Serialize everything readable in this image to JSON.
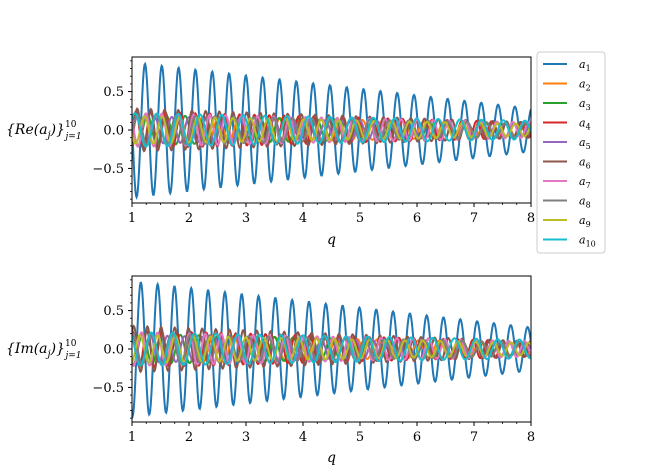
{
  "chart_data": [
    {
      "type": "line",
      "xlabel": "q",
      "ylabel": "{Re(a_j)}_{j=1}^{10}",
      "ylabel_parts": {
        "main": "{Re(a",
        "sub_j": "j",
        "close": ")}",
        "sub_range": "j=1",
        "sup_range": "10"
      },
      "xlim": [
        1,
        8
      ],
      "ylim": [
        -0.95,
        0.95
      ],
      "xticks": [
        "1",
        "2",
        "3",
        "4",
        "5",
        "6",
        "7",
        "8"
      ],
      "yticks": [
        "−0.5",
        "0.0",
        "0.5"
      ],
      "ytick_values": [
        -0.5,
        0.0,
        0.5
      ],
      "grid": false,
      "legend_position": "outside-right",
      "series": [
        {
          "name": "a",
          "sub": "1",
          "color": "#1f77b4",
          "amplitude_start": 0.88,
          "amplitude_end": 0.28,
          "period": 0.295,
          "phase": 0.55
        },
        {
          "name": "a",
          "sub": "2",
          "color": "#ff7f0e",
          "amplitude_start": 0.2,
          "amplitude_end": 0.08,
          "period": 0.36,
          "phase": 1.6
        },
        {
          "name": "a",
          "sub": "3",
          "color": "#2ca02c",
          "amplitude_start": 0.2,
          "amplitude_end": 0.08,
          "period": 0.33,
          "phase": 2.5
        },
        {
          "name": "a",
          "sub": "4",
          "color": "#d62728",
          "amplitude_start": 0.24,
          "amplitude_end": 0.1,
          "period": 0.26,
          "phase": 0.9
        },
        {
          "name": "a",
          "sub": "5",
          "color": "#9467bd",
          "amplitude_start": 0.18,
          "amplitude_end": 0.08,
          "period": 0.3,
          "phase": 3.7
        },
        {
          "name": "a",
          "sub": "6",
          "color": "#8c564b",
          "amplitude_start": 0.28,
          "amplitude_end": 0.1,
          "period": 0.24,
          "phase": 4.4
        },
        {
          "name": "a",
          "sub": "7",
          "color": "#e377c2",
          "amplitude_start": 0.22,
          "amplitude_end": 0.1,
          "period": 0.28,
          "phase": 5.1
        },
        {
          "name": "a",
          "sub": "8",
          "color": "#7f7f7f",
          "amplitude_start": 0.2,
          "amplitude_end": 0.09,
          "period": 0.34,
          "phase": 0.2
        },
        {
          "name": "a",
          "sub": "9",
          "color": "#bcbd22",
          "amplitude_start": 0.18,
          "amplitude_end": 0.08,
          "period": 0.31,
          "phase": 2.0
        },
        {
          "name": "a",
          "sub": "10",
          "color": "#17becf",
          "amplitude_start": 0.22,
          "amplitude_end": 0.12,
          "period": 0.38,
          "phase": 3.0
        }
      ]
    },
    {
      "type": "line",
      "xlabel": "q",
      "ylabel": "{Im(a_j)}_{j=1}^{10}",
      "ylabel_parts": {
        "main": "{Im(a",
        "sub_j": "j",
        "close": ")}",
        "sub_range": "j=1",
        "sup_range": "10"
      },
      "xlim": [
        1,
        8
      ],
      "ylim": [
        -0.95,
        0.95
      ],
      "xticks": [
        "1",
        "2",
        "3",
        "4",
        "5",
        "6",
        "7",
        "8"
      ],
      "yticks": [
        "−0.5",
        "0.0",
        "0.5"
      ],
      "ytick_values": [
        -0.5,
        0.0,
        0.5
      ],
      "grid": false,
      "series": [
        {
          "name": "a",
          "sub": "1",
          "color": "#1f77b4",
          "amplitude_start": 0.88,
          "amplitude_end": 0.28,
          "period": 0.295,
          "phase": 2.1
        },
        {
          "name": "a",
          "sub": "2",
          "color": "#ff7f0e",
          "amplitude_start": 0.2,
          "amplitude_end": 0.08,
          "period": 0.36,
          "phase": 3.2
        },
        {
          "name": "a",
          "sub": "3",
          "color": "#2ca02c",
          "amplitude_start": 0.2,
          "amplitude_end": 0.08,
          "period": 0.33,
          "phase": 4.1
        },
        {
          "name": "a",
          "sub": "4",
          "color": "#d62728",
          "amplitude_start": 0.24,
          "amplitude_end": 0.1,
          "period": 0.26,
          "phase": 2.5
        },
        {
          "name": "a",
          "sub": "5",
          "color": "#9467bd",
          "amplitude_start": 0.18,
          "amplitude_end": 0.08,
          "period": 0.3,
          "phase": 5.3
        },
        {
          "name": "a",
          "sub": "6",
          "color": "#8c564b",
          "amplitude_start": 0.3,
          "amplitude_end": 0.1,
          "period": 0.24,
          "phase": 6.0
        },
        {
          "name": "a",
          "sub": "7",
          "color": "#e377c2",
          "amplitude_start": 0.22,
          "amplitude_end": 0.1,
          "period": 0.28,
          "phase": 0.5
        },
        {
          "name": "a",
          "sub": "8",
          "color": "#7f7f7f",
          "amplitude_start": 0.2,
          "amplitude_end": 0.09,
          "period": 0.34,
          "phase": 1.8
        },
        {
          "name": "a",
          "sub": "9",
          "color": "#bcbd22",
          "amplitude_start": 0.18,
          "amplitude_end": 0.08,
          "period": 0.31,
          "phase": 3.6
        },
        {
          "name": "a",
          "sub": "10",
          "color": "#17becf",
          "amplitude_start": 0.22,
          "amplitude_end": 0.12,
          "period": 0.38,
          "phase": 4.6
        }
      ]
    }
  ]
}
